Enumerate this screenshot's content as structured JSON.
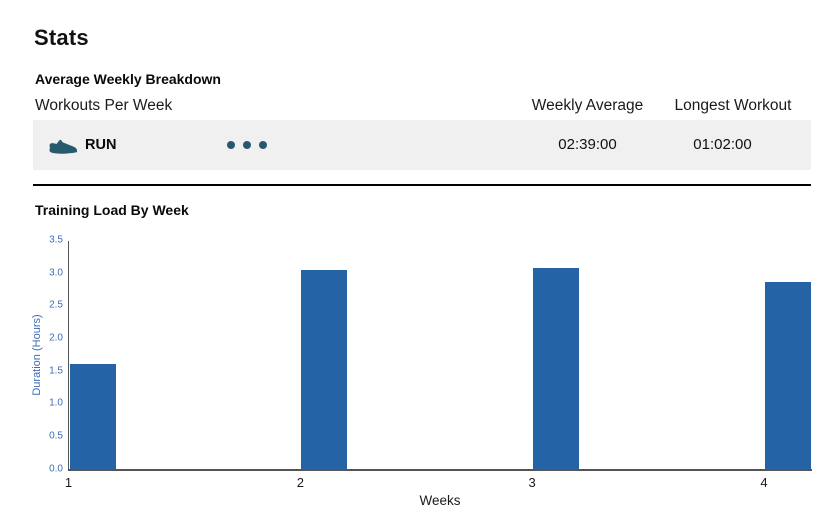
{
  "page": {
    "title": "Stats"
  },
  "breakdown": {
    "section_title": "Average Weekly Breakdown",
    "columns": {
      "workouts": "Workouts Per Week",
      "weekly_average": "Weekly Average",
      "longest_workout": "Longest Workout"
    },
    "rows": [
      {
        "activity": "RUN",
        "icon": "run-shoe-icon",
        "workouts_per_week_dots": 3,
        "weekly_average": "02:39:00",
        "longest_workout": "01:02:00"
      }
    ]
  },
  "training_load": {
    "section_title": "Training Load By Week"
  },
  "chart_data": {
    "type": "bar",
    "title": "Training Load By Week",
    "categories": [
      "1",
      "2",
      "3",
      "4"
    ],
    "values": [
      1.62,
      3.05,
      3.08,
      2.88
    ],
    "xlabel": "Weeks",
    "ylabel": "Duration (Hours)",
    "ylim": [
      0,
      3.5
    ],
    "ytick_step": 0.5,
    "grid": false,
    "legend": false,
    "bar_color": "#2563a7",
    "axis_tick_label_color": "#3d6cb3"
  },
  "colors": {
    "accent_teal": "#275a6d",
    "row_background": "#f0f0f0",
    "bar_blue": "#2563a7",
    "chart_label_blue": "#3d6cb3"
  }
}
